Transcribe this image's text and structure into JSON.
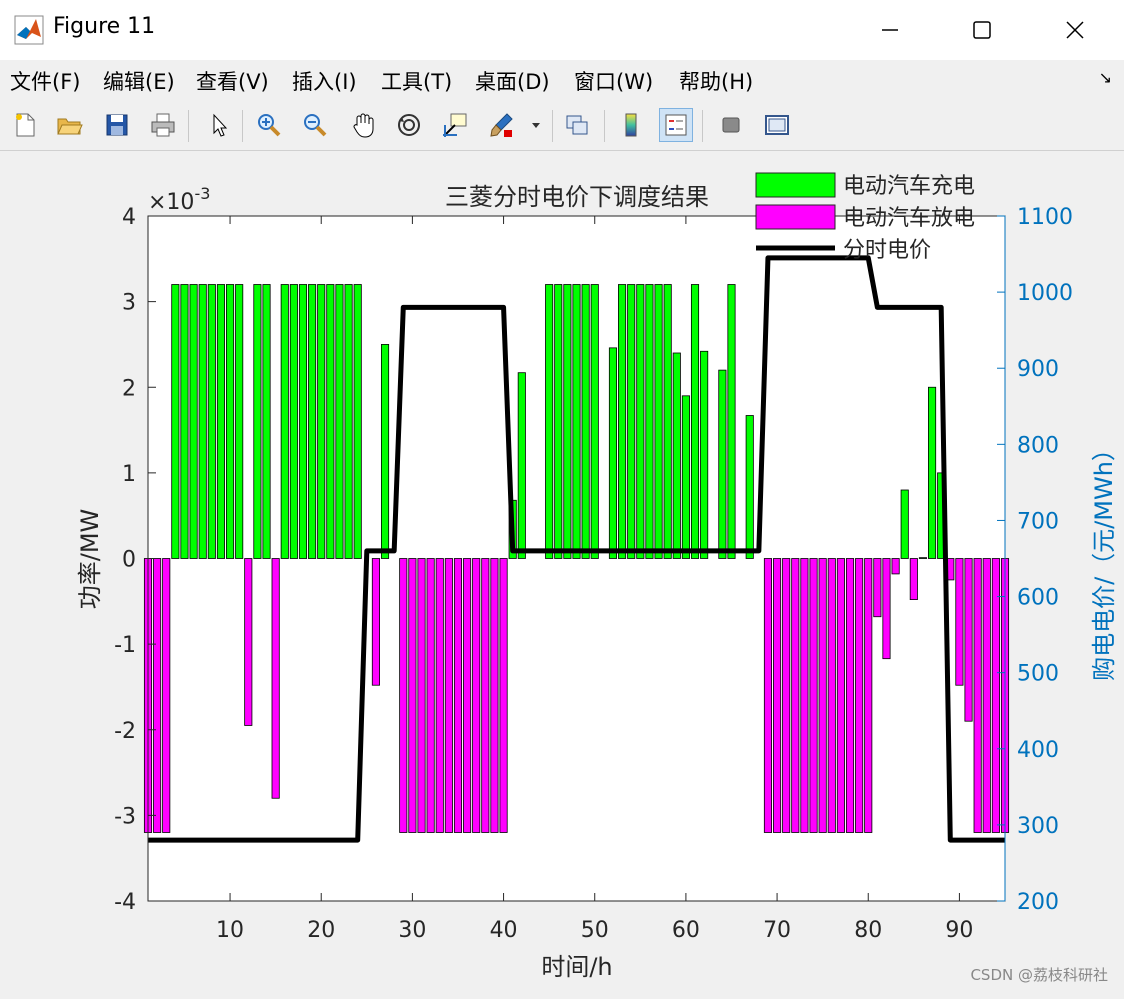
{
  "window": {
    "title": "Figure 11"
  },
  "menu": {
    "items": [
      "文件(F)",
      "编辑(E)",
      "查看(V)",
      "插入(I)",
      "工具(T)",
      "桌面(D)",
      "窗口(W)",
      "帮助(H)"
    ]
  },
  "toolbar": {
    "icons": [
      "new-figure-icon",
      "open-file-icon",
      "save-icon",
      "print-icon",
      "pointer-icon",
      "zoom-in-icon",
      "zoom-out-icon",
      "pan-icon",
      "rotate-3d-icon",
      "data-cursor-icon",
      "brush-icon",
      "link-plot-icon",
      "colorbar-icon",
      "legend-icon",
      "hide-plot-tools-icon",
      "show-plot-tools-icon"
    ]
  },
  "watermark": "CSDN @荔枝科研社",
  "colors": {
    "charge": "#00ff00",
    "discharge": "#ff00ff",
    "price": "#000000",
    "right_axis": "#0072bd"
  },
  "chart_data": {
    "type": "bar",
    "title": "三菱分时电价下调度结果",
    "xlabel": "时间/h",
    "ylabel": "功率/MW",
    "ylabel_right": "购电电价/（元/MWh）",
    "exponent_label": "×10",
    "exponent_power": "-3",
    "xlim": [
      1,
      95
    ],
    "ylim": [
      -4,
      4
    ],
    "ylim_right": [
      200,
      1100
    ],
    "xticks": [
      "10",
      "20",
      "30",
      "40",
      "50",
      "60",
      "70",
      "80",
      "90"
    ],
    "yticks": [
      "-4",
      "-3",
      "-2",
      "-1",
      "0",
      "1",
      "2",
      "3",
      "4"
    ],
    "yticks_right": [
      "200",
      "300",
      "400",
      "500",
      "600",
      "700",
      "800",
      "900",
      "1000",
      "1100"
    ],
    "legend": [
      "电动汽车充电",
      "电动汽车放电",
      "分时电价"
    ],
    "legend_position": "top-right",
    "charge": [
      [
        4,
        3.2
      ],
      [
        5,
        3.2
      ],
      [
        6,
        3.2
      ],
      [
        7,
        3.2
      ],
      [
        8,
        3.2
      ],
      [
        9,
        3.2
      ],
      [
        10,
        3.2
      ],
      [
        11,
        3.2
      ],
      [
        13,
        3.2
      ],
      [
        14,
        3.2
      ],
      [
        16,
        3.2
      ],
      [
        17,
        3.2
      ],
      [
        18,
        3.2
      ],
      [
        19,
        3.2
      ],
      [
        20,
        3.2
      ],
      [
        21,
        3.2
      ],
      [
        22,
        3.2
      ],
      [
        23,
        3.2
      ],
      [
        24,
        3.2
      ],
      [
        27,
        2.5
      ],
      [
        41,
        0.68
      ],
      [
        42,
        2.17
      ],
      [
        45,
        3.2
      ],
      [
        46,
        3.2
      ],
      [
        47,
        3.2
      ],
      [
        48,
        3.2
      ],
      [
        49,
        3.2
      ],
      [
        50,
        3.2
      ],
      [
        52,
        2.46
      ],
      [
        53,
        3.2
      ],
      [
        54,
        3.2
      ],
      [
        55,
        3.2
      ],
      [
        56,
        3.2
      ],
      [
        57,
        3.2
      ],
      [
        58,
        3.2
      ],
      [
        59,
        2.4
      ],
      [
        60,
        1.9
      ],
      [
        61,
        3.2
      ],
      [
        62,
        2.42
      ],
      [
        64,
        2.2
      ],
      [
        65,
        3.2
      ],
      [
        67,
        1.67
      ],
      [
        84,
        0.8
      ],
      [
        86,
        0.01
      ],
      [
        87,
        2.0
      ],
      [
        88,
        1.0
      ]
    ],
    "discharge": [
      [
        1,
        -3.2
      ],
      [
        2,
        -3.2
      ],
      [
        3,
        -3.2
      ],
      [
        12,
        -1.95
      ],
      [
        15,
        -2.8
      ],
      [
        26,
        -1.48
      ],
      [
        29,
        -3.2
      ],
      [
        30,
        -3.2
      ],
      [
        31,
        -3.2
      ],
      [
        32,
        -3.2
      ],
      [
        33,
        -3.2
      ],
      [
        34,
        -3.2
      ],
      [
        35,
        -3.2
      ],
      [
        36,
        -3.2
      ],
      [
        37,
        -3.2
      ],
      [
        38,
        -3.2
      ],
      [
        39,
        -3.2
      ],
      [
        40,
        -3.2
      ],
      [
        69,
        -3.2
      ],
      [
        70,
        -3.2
      ],
      [
        71,
        -3.2
      ],
      [
        72,
        -3.2
      ],
      [
        73,
        -3.2
      ],
      [
        74,
        -3.2
      ],
      [
        75,
        -3.2
      ],
      [
        76,
        -3.2
      ],
      [
        77,
        -3.2
      ],
      [
        78,
        -3.2
      ],
      [
        79,
        -3.2
      ],
      [
        80,
        -3.2
      ],
      [
        81,
        -0.68
      ],
      [
        82,
        -1.17
      ],
      [
        83,
        -0.18
      ],
      [
        85,
        -0.48
      ],
      [
        89,
        -0.25
      ],
      [
        90,
        -1.48
      ],
      [
        91,
        -1.9
      ],
      [
        92,
        -3.2
      ],
      [
        93,
        -3.2
      ],
      [
        94,
        -3.2
      ],
      [
        95,
        -3.2
      ]
    ],
    "price": {
      "x": [
        1,
        24,
        25,
        28,
        29,
        40,
        41,
        68,
        69,
        80,
        81,
        88,
        89,
        95
      ],
      "y": [
        280,
        280,
        660,
        660,
        980,
        980,
        660,
        660,
        1045,
        1045,
        980,
        980,
        280,
        280
      ]
    }
  }
}
